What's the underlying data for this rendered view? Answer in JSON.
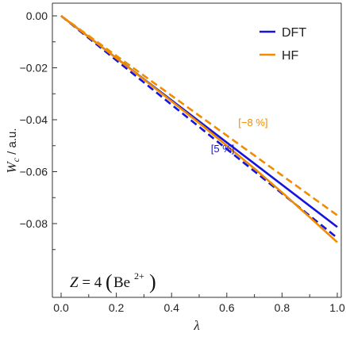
{
  "chart_data": {
    "type": "line",
    "xlabel": "λ",
    "ylabel_main": "W",
    "ylabel_sub": "c",
    "ylabel_unit": " / a.u.",
    "xlim": [
      0,
      1
    ],
    "ylim": [
      -0.092,
      0.004
    ],
    "x_ticks": [
      0.0,
      0.2,
      0.4,
      0.6,
      0.8,
      1.0
    ],
    "x_tick_labels": [
      "0.0",
      "0.2",
      "0.4",
      "0.6",
      "0.8",
      "1.0"
    ],
    "y_ticks": [
      0.0,
      -0.02,
      -0.04,
      -0.06,
      -0.08
    ],
    "y_tick_labels": [
      "0.00",
      "−0.02",
      "−0.04",
      "−0.06",
      "−0.08"
    ],
    "grid": false,
    "legend_position": "top-right",
    "series": [
      {
        "name": "DFT",
        "style": "solid",
        "color": "#1414dc",
        "x": [
          0,
          1
        ],
        "y": [
          0,
          -0.0813
        ]
      },
      {
        "name": "",
        "style": "dashed",
        "color": "#1414dc",
        "x": [
          0,
          1
        ],
        "y": [
          0,
          -0.0855
        ]
      },
      {
        "name": "HF",
        "style": "solid",
        "color": "#f08c00",
        "x": [
          0,
          0.1,
          0.2,
          0.3,
          0.4,
          0.5,
          0.6,
          0.7,
          0.8,
          0.9,
          1.0
        ],
        "y": [
          0,
          -0.0081,
          -0.0163,
          -0.0245,
          -0.0329,
          -0.0413,
          -0.05,
          -0.0588,
          -0.068,
          -0.0775,
          -0.0872
        ]
      },
      {
        "name": "",
        "style": "dashed",
        "color": "#f08c00",
        "x": [
          0,
          1
        ],
        "y": [
          0,
          -0.0768
        ]
      }
    ],
    "annotations": [
      {
        "text": "[−8 %]",
        "color": "#f08c00",
        "x": 0.695,
        "y": -0.0425
      },
      {
        "text": "[5 %]",
        "color": "#1414dc",
        "x": 0.585,
        "y": -0.0525
      }
    ],
    "system_label": {
      "z": "Z",
      "equals": " = 4",
      "element": "Be",
      "charge": "2+"
    }
  }
}
